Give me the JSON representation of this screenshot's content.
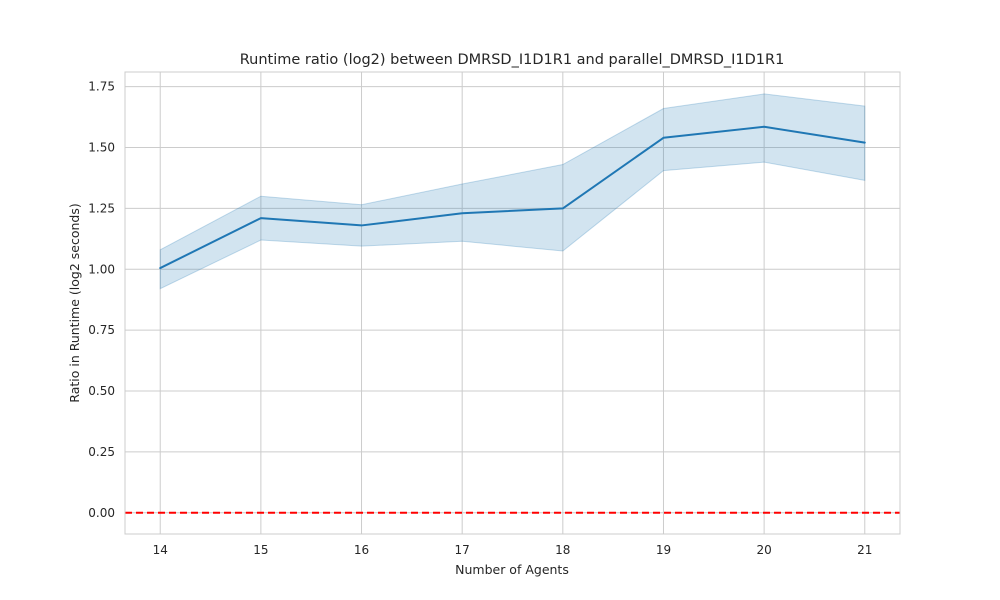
{
  "chart_data": {
    "type": "line",
    "title": "Runtime ratio (log2) between DMRSD_I1D1R1 and parallel_DMRSD_I1D1R1",
    "xlabel": "Number of Agents",
    "ylabel": "Ratio in Runtime (log2 seconds)",
    "x": [
      14,
      15,
      16,
      17,
      18,
      19,
      20,
      21
    ],
    "x_tick_labels": [
      "14",
      "15",
      "16",
      "17",
      "18",
      "19",
      "20",
      "21"
    ],
    "y_ticks": [
      0.0,
      0.25,
      0.5,
      0.75,
      1.0,
      1.25,
      1.5,
      1.75
    ],
    "y_tick_labels": [
      "0.00",
      "0.25",
      "0.50",
      "0.75",
      "1.00",
      "1.25",
      "1.50",
      "1.75"
    ],
    "xlim": [
      13.65,
      21.35
    ],
    "ylim": [
      -0.087,
      1.81
    ],
    "grid": true,
    "series": [
      {
        "values": [
          1.005,
          1.21,
          1.18,
          1.23,
          1.25,
          1.54,
          1.585,
          1.52
        ],
        "ci_low": [
          0.92,
          1.12,
          1.095,
          1.115,
          1.075,
          1.405,
          1.44,
          1.365
        ],
        "ci_high": [
          1.08,
          1.3,
          1.265,
          1.35,
          1.43,
          1.66,
          1.72,
          1.67
        ],
        "color": "#1f77b4"
      }
    ],
    "reference_line": {
      "y": 0.0,
      "color": "#ff0000",
      "style": "dashed"
    }
  }
}
